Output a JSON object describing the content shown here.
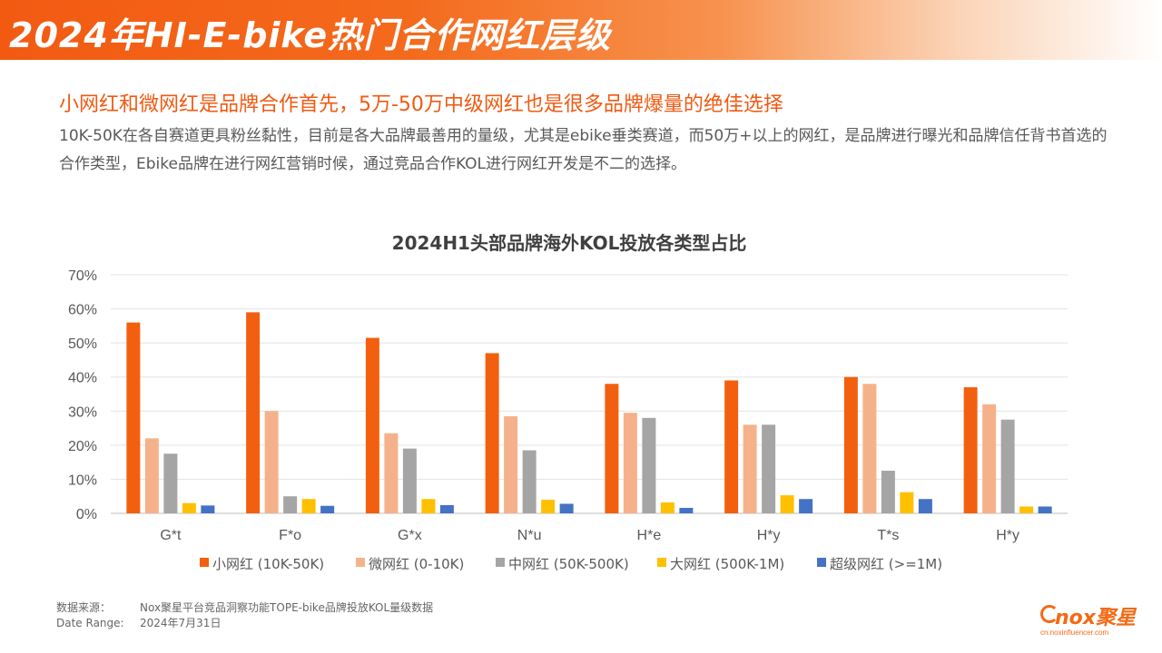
{
  "header": {
    "title": "2024年HI-E-bike热门合作网红层级"
  },
  "headline": "小网红和微网红是品牌合作首先，5万-50万中级网红也是很多品牌爆量的绝佳选择",
  "body": "10K-50K在各自赛道更具粉丝黏性，目前是各大品牌最善用的量级，尤其是ebike垂类赛道，而50万+以上的网红，是品牌进行曝光和品牌信任背书首选的合作类型，Ebike品牌在进行网红营销时候，通过竞品合作KOL进行网红开发是不二的选择。",
  "chart_data": {
    "type": "bar",
    "title": "2024H1头部品牌海外KOL投放各类型占比",
    "categories": [
      "G*t",
      "F*o",
      "G*x",
      "N*u",
      "H*e",
      "H*y",
      "T*s",
      "H*y"
    ],
    "series": [
      {
        "name": "小网红 (10K-50K)",
        "color": "#f2600f",
        "values": [
          56,
          59,
          51.5,
          47,
          38,
          39,
          40,
          37
        ]
      },
      {
        "name": "微网红 (0-10K)",
        "color": "#f5b28a",
        "values": [
          22,
          30,
          23.5,
          28.5,
          29.5,
          26,
          38,
          32
        ]
      },
      {
        "name": "中网红 (50K-500K)",
        "color": "#a5a5a5",
        "values": [
          17.5,
          5,
          19,
          18.5,
          28,
          26,
          12.5,
          27.5
        ]
      },
      {
        "name": "大网红 (500K-1M)",
        "color": "#ffc000",
        "values": [
          3,
          4.2,
          4.2,
          4,
          3.2,
          5.3,
          6.2,
          2
        ]
      },
      {
        "name": "超级网红 (>=1M)",
        "color": "#4472c4",
        "values": [
          2.3,
          2.2,
          2.4,
          2.8,
          1.6,
          4.2,
          4.2,
          2
        ]
      }
    ],
    "ylim": [
      0,
      70
    ],
    "yticks": [
      "0%",
      "10%",
      "20%",
      "30%",
      "40%",
      "50%",
      "60%",
      "70%"
    ],
    "grid": true,
    "legend_position": "bottom"
  },
  "footer": {
    "source_label": "数据来源：",
    "source_value": "Nox聚星平台竞品洞察功能TOPE-bike品牌投放KOL量级数据",
    "range_label": "Date Range:",
    "range_value": "2024年7月31日"
  },
  "logo": {
    "brand": "nox聚星",
    "url": "cn.noxinfluencer.com"
  }
}
